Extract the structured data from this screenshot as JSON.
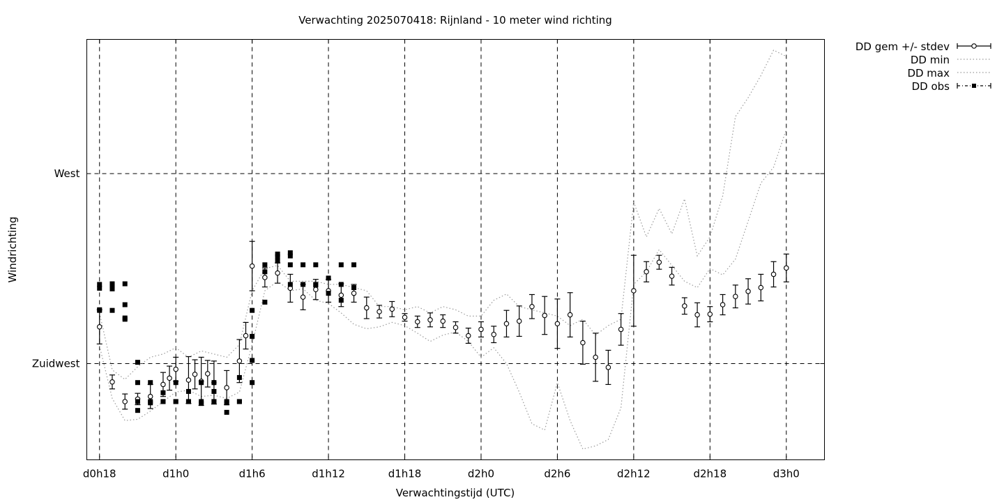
{
  "chart_data": {
    "type": "scatter",
    "title": "Verwachting 2025070418: Rijnland - 10 meter wind richting",
    "xlabel": "Verwachtingstijd (UTC)",
    "ylabel": "Windrichting",
    "x_unit": "hours since d0h0",
    "xlim": [
      17.0,
      75.0
    ],
    "ylim": [
      209.8,
      276.2
    ],
    "xticks": [
      {
        "x": 18,
        "label": "d0h18"
      },
      {
        "x": 24,
        "label": "d1h0"
      },
      {
        "x": 30,
        "label": "d1h6"
      },
      {
        "x": 36,
        "label": "d1h12"
      },
      {
        "x": 42,
        "label": "d1h18"
      },
      {
        "x": 48,
        "label": "d2h0"
      },
      {
        "x": 54,
        "label": "d2h6"
      },
      {
        "x": 60,
        "label": "d2h12"
      },
      {
        "x": 66,
        "label": "d2h18"
      },
      {
        "x": 72,
        "label": "d3h0"
      }
    ],
    "yticks": [
      {
        "y": 225,
        "label": "Zuidwest"
      },
      {
        "y": 255,
        "label": "West"
      }
    ],
    "grid": true,
    "legend_position": "outside-top-right",
    "legend": [
      "DD gem +/- stdev",
      "DD min",
      "DD max",
      "DD obs"
    ],
    "series": [
      {
        "name": "DD gem +/- stdev",
        "style": "points-with-errorbars",
        "x": [
          18,
          19,
          20,
          21,
          22,
          23,
          23.5,
          24,
          25,
          25.5,
          26,
          26.5,
          27,
          28,
          29,
          29.5,
          30,
          31,
          32,
          33,
          34,
          35,
          36,
          37,
          38,
          39,
          40,
          41,
          42,
          43,
          44,
          45,
          46,
          47,
          48,
          49,
          50,
          51,
          52,
          53,
          54,
          55,
          56,
          57,
          58,
          59,
          60,
          61,
          62,
          63,
          64,
          65,
          66,
          67,
          68,
          69,
          70,
          71,
          72
        ],
        "y": [
          230.8,
          222.1,
          219.0,
          219.4,
          219.8,
          221.7,
          222.7,
          224.1,
          222.4,
          223.3,
          222.2,
          223.4,
          222.0,
          221.2,
          225.4,
          229.4,
          240.4,
          238.6,
          239.3,
          236.9,
          235.5,
          236.7,
          236.5,
          235.8,
          236.1,
          233.8,
          233.2,
          233.6,
          232.3,
          231.6,
          231.9,
          231.7,
          230.7,
          229.4,
          230.4,
          229.6,
          231.3,
          231.7,
          234.0,
          232.6,
          231.3,
          232.7,
          228.3,
          226.0,
          224.4,
          230.4,
          236.5,
          239.5,
          241.0,
          238.8,
          234.1,
          232.7,
          232.8,
          234.3,
          235.6,
          236.4,
          237.0,
          239.1,
          240.1
        ],
        "err": [
          2.7,
          1.1,
          1.2,
          0.9,
          1.9,
          1.9,
          1.9,
          1.9,
          3.7,
          2.3,
          3.8,
          2.1,
          3.4,
          2.7,
          3.4,
          2.1,
          3.9,
          1.5,
          1.6,
          2.2,
          2.0,
          1.6,
          1.8,
          1.8,
          1.4,
          1.7,
          1.0,
          1.2,
          0.6,
          0.9,
          1.1,
          1.0,
          0.9,
          1.2,
          1.2,
          1.3,
          2.1,
          2.4,
          1.9,
          3.0,
          3.9,
          3.5,
          3.4,
          3.8,
          2.7,
          2.5,
          5.6,
          1.6,
          1.1,
          1.4,
          1.3,
          1.9,
          1.2,
          1.6,
          1.8,
          2.0,
          2.1,
          2.0,
          2.2
        ]
      },
      {
        "name": "DD min",
        "style": "dotted-line",
        "x": [
          18,
          19,
          20,
          21,
          22,
          23,
          24,
          25,
          26,
          27,
          28,
          29,
          30,
          31,
          32,
          33,
          34,
          35,
          36,
          37,
          38,
          39,
          40,
          41,
          42,
          43,
          44,
          45,
          46,
          47,
          48,
          49,
          50,
          51,
          52,
          53,
          54,
          55,
          56,
          57,
          58,
          59,
          60,
          61,
          62,
          63,
          64,
          65,
          66,
          67,
          68,
          69,
          70,
          71,
          72
        ],
        "y": [
          227.8,
          219.5,
          216.0,
          216.2,
          217.5,
          219.0,
          220.5,
          220.8,
          219.8,
          220.0,
          219.5,
          220.5,
          228.0,
          236.5,
          238.0,
          236.5,
          236.8,
          235.0,
          234.5,
          233.0,
          231.2,
          230.5,
          230.8,
          231.5,
          231.0,
          229.8,
          228.5,
          229.5,
          230.0,
          228.5,
          226.0,
          227.5,
          225.0,
          220.5,
          215.5,
          214.5,
          222.0,
          216.0,
          211.5,
          212.0,
          213.0,
          218.0,
          237.5,
          239.5,
          243.0,
          240.5,
          238.0,
          237.0,
          240.0,
          239.0,
          241.5,
          247.5,
          253.5,
          256.0,
          262.0
        ]
      },
      {
        "name": "DD max",
        "style": "dotted-line",
        "x": [
          18,
          19,
          20,
          21,
          22,
          23,
          24,
          25,
          26,
          27,
          28,
          29,
          30,
          31,
          32,
          33,
          34,
          35,
          36,
          37,
          38,
          39,
          40,
          41,
          42,
          43,
          44,
          45,
          46,
          47,
          48,
          49,
          50,
          51,
          52,
          53,
          54,
          55,
          56,
          57,
          58,
          59,
          60,
          61,
          62,
          63,
          64,
          65,
          66,
          67,
          68,
          69,
          70,
          71,
          72
        ],
        "y": [
          233.0,
          224.0,
          222.5,
          224.5,
          226.0,
          226.5,
          227.5,
          226.0,
          227.0,
          226.5,
          226.0,
          228.0,
          236.5,
          240.0,
          240.5,
          238.0,
          238.0,
          238.0,
          237.5,
          237.5,
          237.0,
          236.5,
          234.0,
          234.0,
          233.5,
          234.0,
          233.0,
          234.0,
          233.5,
          232.5,
          232.5,
          235.0,
          236.0,
          234.0,
          233.5,
          233.0,
          232.5,
          231.0,
          232.0,
          229.5,
          231.0,
          232.0,
          250.5,
          245.0,
          249.5,
          245.5,
          251.0,
          242.0,
          245.0,
          251.5,
          264.0,
          267.0,
          270.5,
          274.5,
          273.5
        ]
      },
      {
        "name": "DD obs",
        "style": "filled-square-points",
        "points": [
          [
            18,
            237.5
          ],
          [
            18,
            233.5
          ],
          [
            18,
            236.9
          ],
          [
            18,
            233.4
          ],
          [
            19,
            237.3
          ],
          [
            19,
            233.4
          ],
          [
            19,
            237.6
          ],
          [
            19,
            236.8
          ],
          [
            20,
            232.0
          ],
          [
            20,
            237.6
          ],
          [
            20,
            234.3
          ],
          [
            20,
            232.2
          ],
          [
            21,
            222.0
          ],
          [
            21,
            219.0
          ],
          [
            21,
            217.6
          ],
          [
            21,
            225.2
          ],
          [
            22,
            219.0
          ],
          [
            22,
            218.8
          ],
          [
            22,
            222.0
          ],
          [
            23,
            219.0
          ],
          [
            23,
            220.4
          ],
          [
            23,
            219.0
          ],
          [
            24,
            222.0
          ],
          [
            24,
            219.0
          ],
          [
            24,
            219.0
          ],
          [
            25,
            219.0
          ],
          [
            25,
            220.6
          ],
          [
            25,
            219.0
          ],
          [
            26,
            219.0
          ],
          [
            26,
            218.7
          ],
          [
            26,
            222.0
          ],
          [
            27,
            219.0
          ],
          [
            27,
            220.6
          ],
          [
            27,
            222.0
          ],
          [
            27,
            219.0
          ],
          [
            28,
            218.8
          ],
          [
            28,
            217.3
          ],
          [
            28,
            219.0
          ],
          [
            29,
            219.0
          ],
          [
            29,
            222.8
          ],
          [
            29,
            219.0
          ],
          [
            30,
            222.0
          ],
          [
            30,
            225.5
          ],
          [
            30,
            229.3
          ],
          [
            30,
            233.4
          ],
          [
            31,
            234.7
          ],
          [
            31,
            240.6
          ],
          [
            31,
            239.5
          ],
          [
            32,
            242.3
          ],
          [
            32,
            241.2
          ],
          [
            32,
            241.9
          ],
          [
            33,
            240.6
          ],
          [
            33,
            237.5
          ],
          [
            33,
            242.5
          ],
          [
            33,
            242.0
          ],
          [
            34,
            237.5
          ],
          [
            34,
            240.6
          ],
          [
            35,
            240.6
          ],
          [
            35,
            237.5
          ],
          [
            35,
            237.4
          ],
          [
            36,
            236.1
          ],
          [
            36,
            238.5
          ],
          [
            37,
            235.0
          ],
          [
            37,
            237.5
          ],
          [
            37,
            240.6
          ],
          [
            38,
            237.0
          ],
          [
            38,
            240.6
          ]
        ]
      }
    ]
  }
}
